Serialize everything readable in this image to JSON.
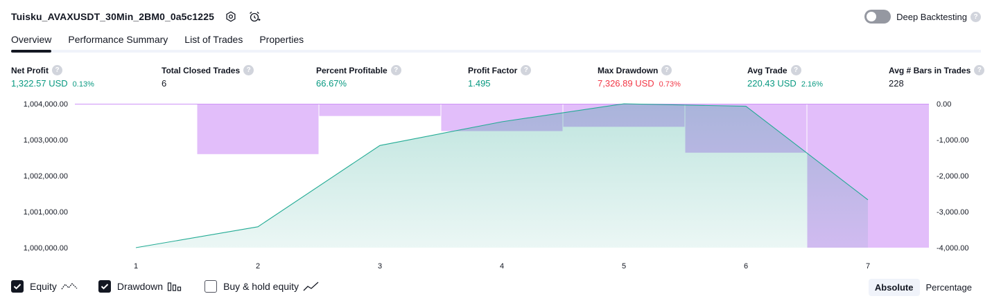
{
  "header": {
    "title": "Tuisku_AVAXUSDT_30Min_2BM0_0a5c1225",
    "deep_backtesting_label": "Deep Backtesting",
    "help_glyph": "?"
  },
  "tabs": [
    {
      "label": "Overview"
    },
    {
      "label": "Performance Summary"
    },
    {
      "label": "List of Trades"
    },
    {
      "label": "Properties"
    }
  ],
  "stats": {
    "net_profit": {
      "label": "Net Profit",
      "value": "1,322.57 USD",
      "pct": "0.13%"
    },
    "total_closed_trades": {
      "label": "Total Closed Trades",
      "value": "6"
    },
    "percent_profitable": {
      "label": "Percent Profitable",
      "value": "66.67%"
    },
    "profit_factor": {
      "label": "Profit Factor",
      "value": "1.495"
    },
    "max_drawdown": {
      "label": "Max Drawdown",
      "value": "7,326.89 USD",
      "pct": "0.73%"
    },
    "avg_trade": {
      "label": "Avg Trade",
      "value": "220.43 USD",
      "pct": "2.16%"
    },
    "avg_bars": {
      "label": "Avg # Bars in Trades",
      "value": "228"
    }
  },
  "chart_data": {
    "type": "area",
    "x": [
      1,
      2,
      3,
      4,
      5,
      6,
      7
    ],
    "x_tick_labels": [
      "1",
      "2",
      "3",
      "4",
      "5",
      "6",
      "7"
    ],
    "left_axis": {
      "ylim": [
        1000000,
        1004000
      ],
      "tick_labels": [
        "1,004,000.00",
        "1,003,000.00",
        "1,002,000.00",
        "1,001,000.00",
        "1,000,000.00"
      ],
      "tick_values": [
        1004000,
        1003000,
        1002000,
        1001000,
        1000000
      ]
    },
    "right_axis": {
      "ylim": [
        -4000,
        0
      ],
      "tick_labels": [
        "0.00",
        "-1,000.00",
        "-2,000.00",
        "-3,000.00",
        "-4,000.00"
      ],
      "tick_values": [
        0,
        -1000,
        -2000,
        -3000,
        -4000
      ]
    },
    "series": [
      {
        "name": "Equity",
        "axis": "left",
        "values": [
          1000000,
          1000580,
          1002840,
          1003500,
          1004000,
          1003930,
          1001330
        ]
      },
      {
        "name": "Drawdown",
        "axis": "right",
        "values": [
          0,
          -1400,
          -340,
          -760,
          -640,
          -1360,
          -4000
        ]
      }
    ],
    "colors": {
      "equity_line": "#22ab94",
      "equity_fill": "#089981",
      "drawdown": "#ce93f7"
    }
  },
  "legend": {
    "equity": {
      "label": "Equity",
      "checked": true
    },
    "drawdown": {
      "label": "Drawdown",
      "checked": true
    },
    "buy_hold": {
      "label": "Buy & hold equity",
      "checked": false
    }
  },
  "modes": {
    "absolute": "Absolute",
    "percentage": "Percentage",
    "active": "absolute"
  }
}
